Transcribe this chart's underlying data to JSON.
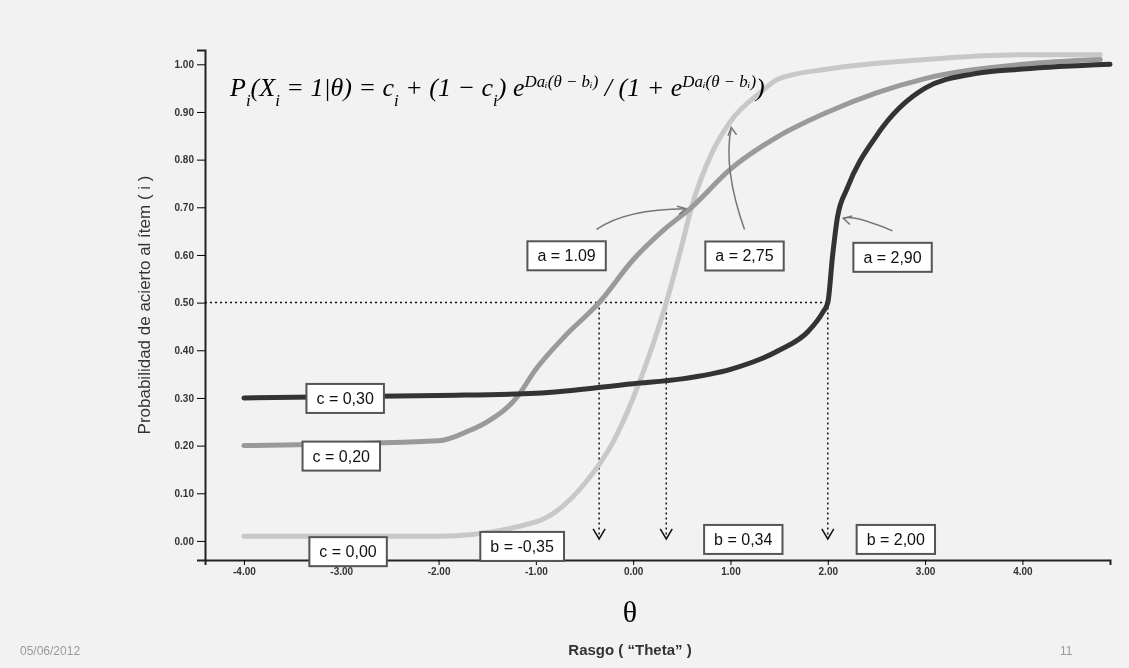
{
  "chart_data": {
    "type": "line",
    "title": "P$_{i}$(X$_{i}$ = 1|θ) = c$_{i}$ + (1 − c$_{i}$) e$^{Daᵢ(θ − bᵢ)}$ / (1 + e$^{Daᵢ(θ − bᵢ)}$)",
    "xlabel": "θ\nRasgo ( “Theta” )",
    "ylabel": "Probabilidad de acierto al ítem ( i )",
    "xlim": [
      -4.4,
      4.9
    ],
    "ylim": [
      -0.04,
      1.03
    ],
    "xticks": [
      {
        "value": -4,
        "label": "-4.00"
      },
      {
        "value": -3,
        "label": "-3.00"
      },
      {
        "value": -2,
        "label": "-2.00"
      },
      {
        "value": -1,
        "label": "-1.00"
      },
      {
        "value": 0,
        "label": "0.00"
      },
      {
        "value": 1,
        "label": "1.00"
      },
      {
        "value": 2,
        "label": "2.00"
      },
      {
        "value": 3,
        "label": "3.00"
      },
      {
        "value": 4,
        "label": "4.00"
      }
    ],
    "yticks": [
      {
        "value": 0,
        "label": "0.00"
      },
      {
        "value": 0.1,
        "label": "0.10"
      },
      {
        "value": 0.2,
        "label": "0.20"
      },
      {
        "value": 0.3,
        "label": "0.30"
      },
      {
        "value": 0.4,
        "label": "0.40"
      },
      {
        "value": 0.5,
        "label": "0.50"
      },
      {
        "value": 0.6,
        "label": "0.60"
      },
      {
        "value": 0.7,
        "label": "0.70"
      },
      {
        "value": 0.8,
        "label": "0.80"
      },
      {
        "value": 0.9,
        "label": "0.90"
      },
      {
        "value": 1,
        "label": "1.00"
      }
    ],
    "grid": false,
    "legend": false,
    "marker": "none",
    "line_style": "solid",
    "series": [
      {
        "color": "#c8c8c8",
        "x": [
          -4,
          -2,
          -1,
          -0.5,
          -0.2,
          0,
          0.2,
          0.34,
          0.5,
          0.6,
          0.8,
          1,
          1.3,
          1.5,
          2,
          3,
          4,
          4.8
        ],
        "values": [
          0.01,
          0.01,
          0.04,
          0.12,
          0.21,
          0.3,
          0.41,
          0.5,
          0.62,
          0.7,
          0.81,
          0.88,
          0.94,
          0.97,
          0.99,
          1.01,
          1.02,
          1.02
        ]
      },
      {
        "color": "#9a9a9a",
        "x": [
          -4,
          -2,
          -1.7,
          -1.5,
          -1.2,
          -1,
          -0.7,
          -0.35,
          0,
          0.3,
          0.6,
          1,
          1.5,
          2,
          2.5,
          3,
          4,
          4.8
        ],
        "values": [
          0.2,
          0.21,
          0.23,
          0.25,
          0.3,
          0.36,
          0.43,
          0.5,
          0.59,
          0.65,
          0.7,
          0.78,
          0.85,
          0.9,
          0.94,
          0.97,
          1.0,
          1.01
        ]
      },
      {
        "color": "#333333",
        "x": [
          -4,
          -2,
          -1,
          0,
          0.5,
          1,
          1.5,
          1.8,
          1.95,
          2,
          2.05,
          2.1,
          2.2,
          2.5,
          3,
          3.5,
          4,
          4.9
        ],
        "values": [
          0.3,
          0.305,
          0.31,
          0.33,
          0.34,
          0.36,
          0.4,
          0.44,
          0.48,
          0.5,
          0.6,
          0.68,
          0.74,
          0.85,
          0.95,
          0.98,
          0.99,
          1.0
        ]
      }
    ],
    "ref_lines": [
      {
        "axis": "y",
        "value": 0.5,
        "line_style": "dotted"
      },
      {
        "axis": "x",
        "value": -0.35,
        "line_style": "dotted"
      },
      {
        "axis": "x",
        "value": 0.34,
        "line_style": "dotted"
      },
      {
        "axis": "x",
        "value": 2.0,
        "line_style": "dotted"
      }
    ],
    "annotations": [
      {
        "text": "a = 1.09",
        "x": 0.6,
        "y": 0.7
      },
      {
        "text": "a = 2,75",
        "x": 1.0,
        "y": 0.88
      },
      {
        "text": "a = 2,90",
        "x": 2.1,
        "y": 0.68
      },
      {
        "text": "c = 0,30",
        "x": -2.96,
        "y": 0.3
      },
      {
        "text": "c = 0,20",
        "x": -3.0,
        "y": 0.2
      },
      {
        "text": "c = 0,00",
        "x": -2.93,
        "y": 0.01
      },
      {
        "text": "b = -0,35",
        "x": -0.35,
        "y": 0
      },
      {
        "text": "b = 0,34",
        "x": 0.34,
        "y": 0
      },
      {
        "text": "b = 2,00",
        "x": 2.0,
        "y": 0
      },
      "05/06/2012",
      "11"
    ]
  }
}
